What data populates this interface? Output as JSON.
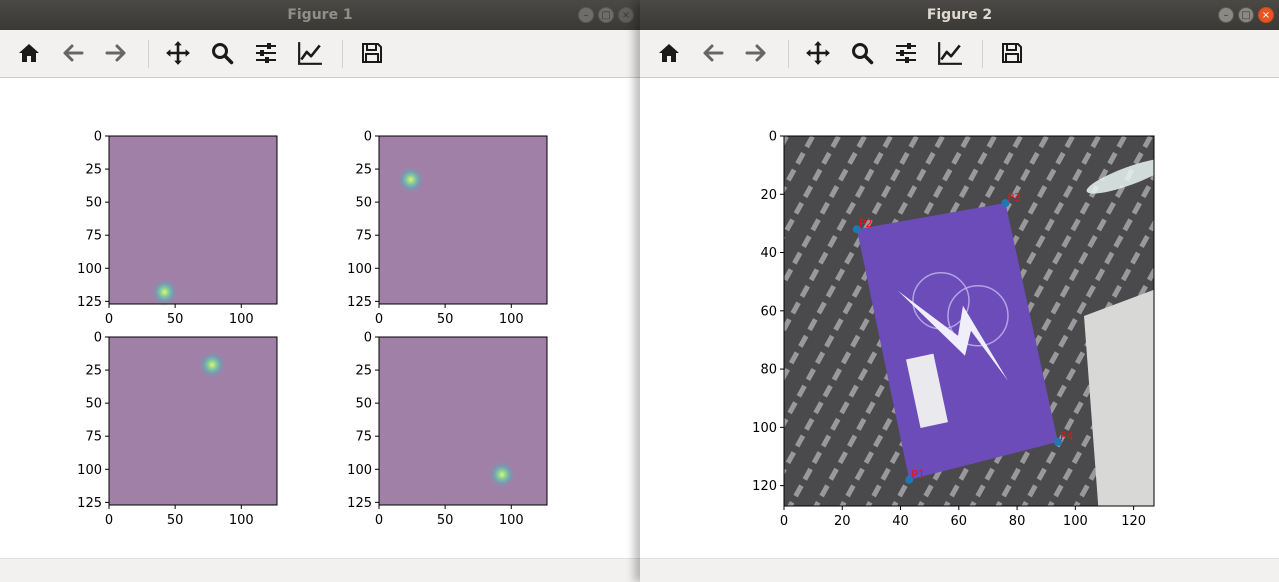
{
  "figure1": {
    "title": "Figure 1",
    "buttons": {
      "minimize": "–",
      "maximize": "□",
      "close": "×"
    },
    "heatmap_color": "#a180a8",
    "subplot_ticks_x": [
      "0",
      "50",
      "100"
    ],
    "subplot_ticks_y": [
      "0",
      "25",
      "50",
      "75",
      "100",
      "125"
    ]
  },
  "figure2": {
    "title": "Figure 2",
    "buttons": {
      "minimize": "–",
      "maximize": "□",
      "close": "×"
    },
    "ticks_x": [
      "0",
      "20",
      "40",
      "60",
      "80",
      "100",
      "120"
    ],
    "ticks_y": [
      "0",
      "20",
      "40",
      "60",
      "80",
      "100",
      "120"
    ],
    "point_color": "#1f77b4",
    "label_color": "#e8111a",
    "card_color": "#6b4cb8",
    "points": [
      {
        "label": "P1",
        "x": 43,
        "y": 118
      },
      {
        "label": "P2",
        "x": 25,
        "y": 32
      },
      {
        "label": "P3",
        "x": 76,
        "y": 23
      },
      {
        "label": "P4",
        "x": 94,
        "y": 105
      }
    ]
  },
  "toolbar_icons": [
    "home-icon",
    "back-icon",
    "forward-icon",
    "pan-icon",
    "zoom-icon",
    "configure-subplots-icon",
    "edit-axis-icon",
    "save-icon"
  ],
  "chart_data": [
    {
      "type": "heatmap",
      "title": "",
      "xlim": [
        0,
        127
      ],
      "ylim": [
        127,
        0
      ],
      "peak": {
        "x": 42,
        "y": 118
      }
    },
    {
      "type": "heatmap",
      "title": "",
      "xlim": [
        0,
        127
      ],
      "ylim": [
        127,
        0
      ],
      "peak": {
        "x": 24,
        "y": 33
      }
    },
    {
      "type": "heatmap",
      "title": "",
      "xlim": [
        0,
        127
      ],
      "ylim": [
        127,
        0
      ],
      "peak": {
        "x": 78,
        "y": 21
      }
    },
    {
      "type": "heatmap",
      "title": "",
      "xlim": [
        0,
        127
      ],
      "ylim": [
        127,
        0
      ],
      "peak": {
        "x": 93,
        "y": 104
      }
    },
    {
      "type": "scatter",
      "title": "",
      "xlim": [
        0,
        127
      ],
      "ylim": [
        127,
        0
      ],
      "series": [
        {
          "x": [
            43,
            25,
            76,
            94
          ],
          "y": [
            118,
            32,
            23,
            105
          ]
        }
      ]
    }
  ]
}
